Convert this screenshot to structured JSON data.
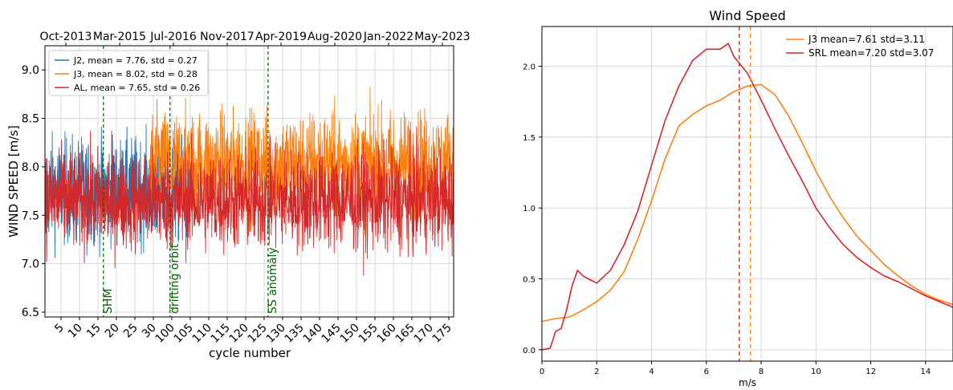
{
  "chart_data": [
    {
      "type": "line",
      "title": "",
      "xlabel": "cycle number",
      "ylabel": "WIND SPEED [m/s]",
      "ylim": [
        6.45,
        9.25
      ],
      "yticks": [
        6.5,
        7.0,
        7.5,
        8.0,
        8.5,
        9.0
      ],
      "ytick_labels": [
        "6.5",
        "7.0",
        "7.5",
        "8.0",
        "8.5",
        "9.0"
      ],
      "xtick_labels": [
        "5",
        "10",
        "15",
        "20",
        "25",
        "30",
        "100",
        "105",
        "110",
        "115",
        "120",
        "125",
        "130",
        "135",
        "140",
        "145",
        "150",
        "155",
        "160",
        "165",
        "170",
        "175"
      ],
      "top_axis_labels": [
        "Oct-2013",
        "Mar-2015",
        "Jul-2016",
        "Nov-2017",
        "Apr-2019",
        "Aug-2020",
        "Jan-2022",
        "May-2023"
      ],
      "grid": true,
      "legend": "top-left",
      "series": [
        {
          "name": "J2, mean = 7.76, std = 0.27",
          "color": "#1f77b4",
          "mean": 7.76,
          "std": 0.27,
          "x_start": 0.0,
          "x_end": 0.355
        },
        {
          "name": "J3, mean = 8.02, std = 0.28",
          "color": "#ff7f0e",
          "mean": 8.02,
          "std": 0.28,
          "x_start": 0.255,
          "x_end": 1.0
        },
        {
          "name": "AL, mean = 7.65, std = 0.26",
          "color": "#d62728",
          "mean": 7.65,
          "std": 0.26,
          "x_start": 0.0,
          "x_end": 1.0
        }
      ],
      "events": [
        {
          "label": "SHM",
          "color": "#006400",
          "x_frac": 0.143
        },
        {
          "label": "drifting orbit",
          "color": "#006400",
          "x_frac": 0.306
        },
        {
          "label": "SS anomaly",
          "color": "#006400",
          "x_frac": 0.546
        }
      ]
    },
    {
      "type": "line",
      "title": "Wind Speed",
      "xlabel": "m/s",
      "ylabel": "",
      "xlim": [
        0,
        15
      ],
      "ylim": [
        -0.08,
        2.28
      ],
      "xticks": [
        0,
        2,
        4,
        6,
        8,
        10,
        12,
        14
      ],
      "xtick_labels": [
        "0",
        "2",
        "4",
        "6",
        "8",
        "10",
        "12",
        "14"
      ],
      "yticks": [
        0.0,
        0.5,
        1.0,
        1.5,
        2.0
      ],
      "ytick_labels": [
        "0.0",
        "0.5",
        "1.0",
        "1.5",
        "2.0"
      ],
      "grid": true,
      "legend": "top-right",
      "series": [
        {
          "name": "J3  mean=7.61 std=3.11",
          "color": "#ff7f0e",
          "mean_line": 7.61,
          "x": [
            0,
            0.5,
            1,
            1.5,
            2,
            2.5,
            3,
            3.5,
            4,
            4.5,
            5,
            5.5,
            6,
            6.5,
            7,
            7.5,
            8,
            8.5,
            9,
            9.5,
            10,
            10.5,
            11,
            11.5,
            12,
            12.5,
            13,
            13.5,
            14,
            14.5,
            15
          ],
          "y": [
            0.2,
            0.22,
            0.23,
            0.28,
            0.34,
            0.42,
            0.55,
            0.78,
            1.05,
            1.35,
            1.58,
            1.66,
            1.72,
            1.76,
            1.82,
            1.86,
            1.87,
            1.8,
            1.65,
            1.46,
            1.26,
            1.08,
            0.93,
            0.8,
            0.7,
            0.6,
            0.52,
            0.45,
            0.39,
            0.35,
            0.32
          ]
        },
        {
          "name": "SRL mean=7.20 std=3.07",
          "color": "#d62728",
          "mean_line": 7.2,
          "x": [
            0,
            0.3,
            0.5,
            0.7,
            0.9,
            1.1,
            1.3,
            1.5,
            1.7,
            2,
            2.5,
            3,
            3.5,
            4,
            4.5,
            5,
            5.5,
            6,
            6.5,
            6.8,
            7,
            7.5,
            8,
            8.5,
            9,
            9.5,
            10,
            10.5,
            11,
            11.5,
            12,
            12.5,
            13,
            13.5,
            14,
            14.5,
            15
          ],
          "y": [
            0,
            0.01,
            0.13,
            0.15,
            0.28,
            0.45,
            0.56,
            0.52,
            0.5,
            0.47,
            0.56,
            0.74,
            0.98,
            1.3,
            1.62,
            1.86,
            2.04,
            2.12,
            2.12,
            2.16,
            2.07,
            1.95,
            1.76,
            1.56,
            1.37,
            1.19,
            1.0,
            0.86,
            0.74,
            0.65,
            0.58,
            0.52,
            0.48,
            0.43,
            0.38,
            0.34,
            0.3
          ]
        }
      ]
    }
  ]
}
